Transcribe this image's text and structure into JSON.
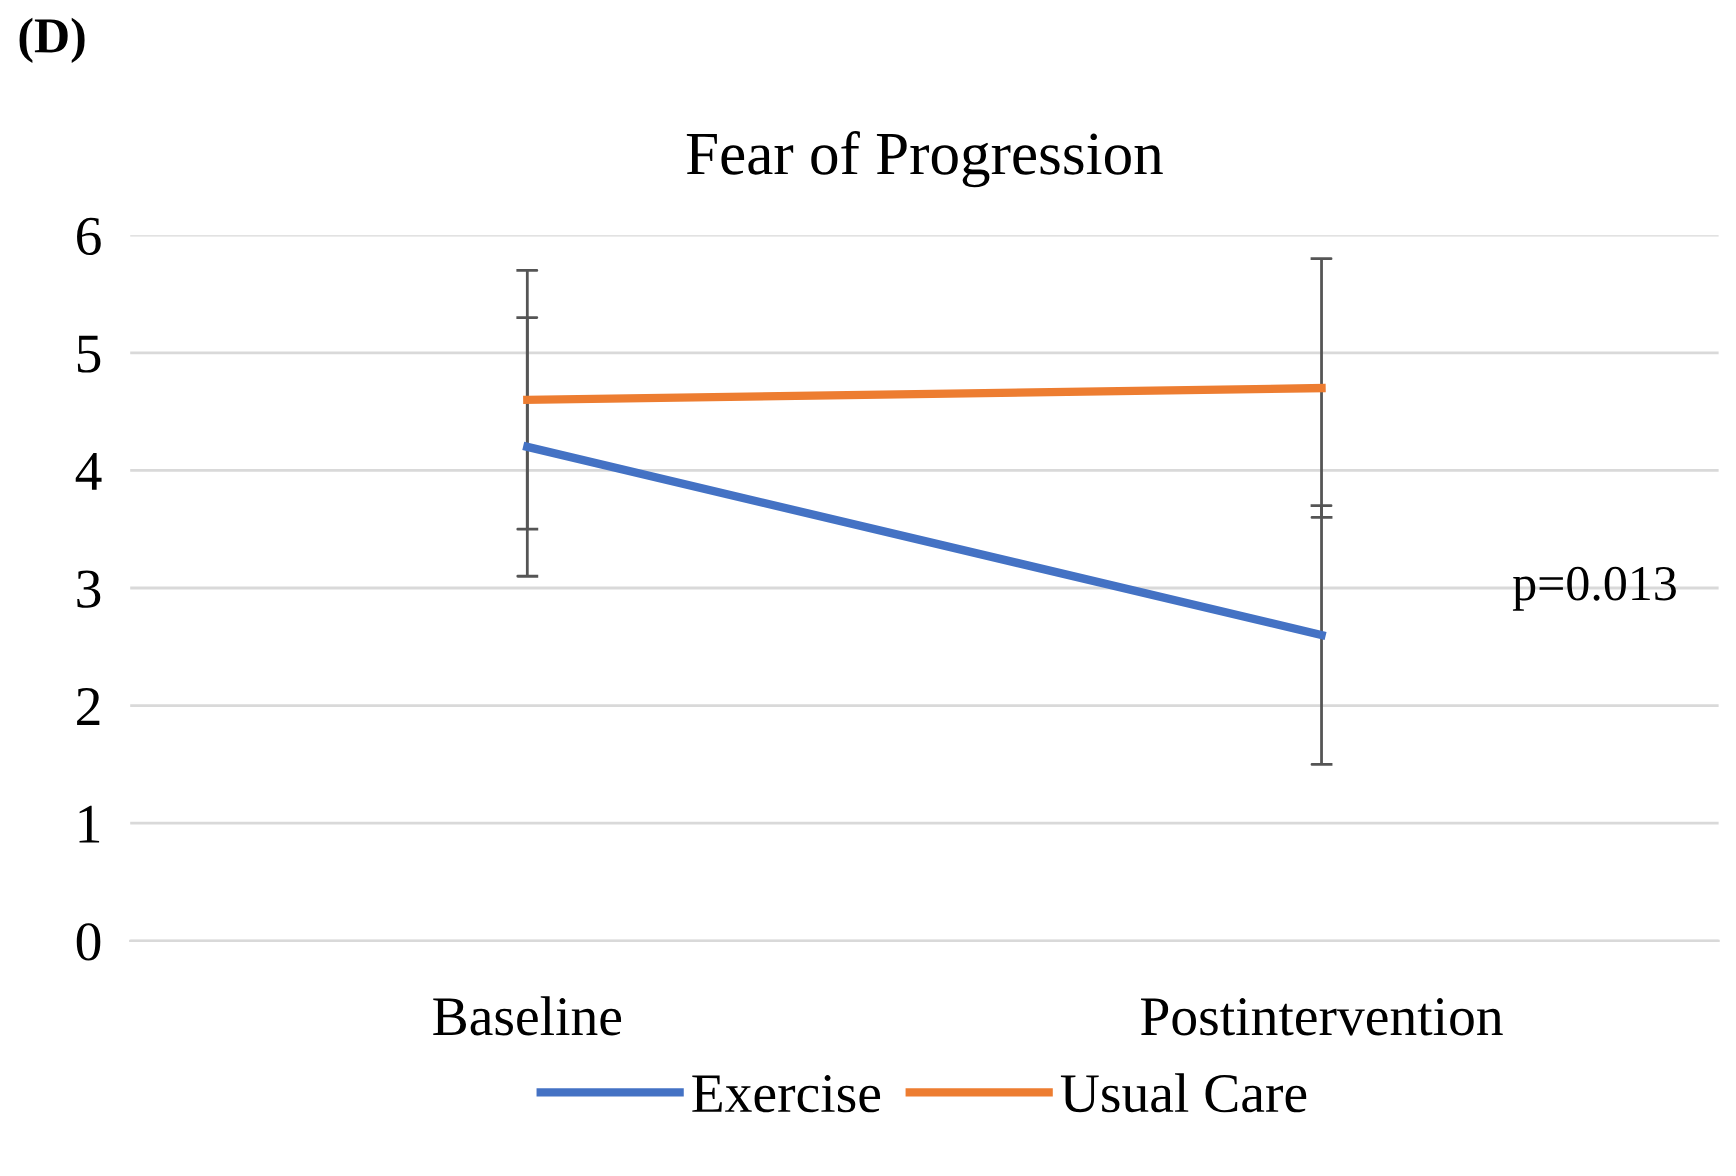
{
  "chart_data": {
    "type": "line",
    "title": "Fear of Progression",
    "categories": [
      "Baseline",
      "Postintervention"
    ],
    "series": [
      {
        "name": "Exercise",
        "color": "#4472c4",
        "values": [
          4.2,
          2.6
        ],
        "errors": [
          1.1,
          1.1
        ]
      },
      {
        "name": "Usual Care",
        "color": "#ed7d31",
        "values": [
          4.6,
          4.7
        ],
        "errors": [
          1.1,
          1.1
        ]
      }
    ],
    "ylim": [
      0,
      6
    ],
    "yticks": [
      0,
      1,
      2,
      3,
      4,
      5,
      6
    ],
    "grid": "y",
    "legend": "bottom",
    "marker": "none",
    "line_style": "solid",
    "annotations": [
      "(D)",
      "p=0.013"
    ]
  }
}
